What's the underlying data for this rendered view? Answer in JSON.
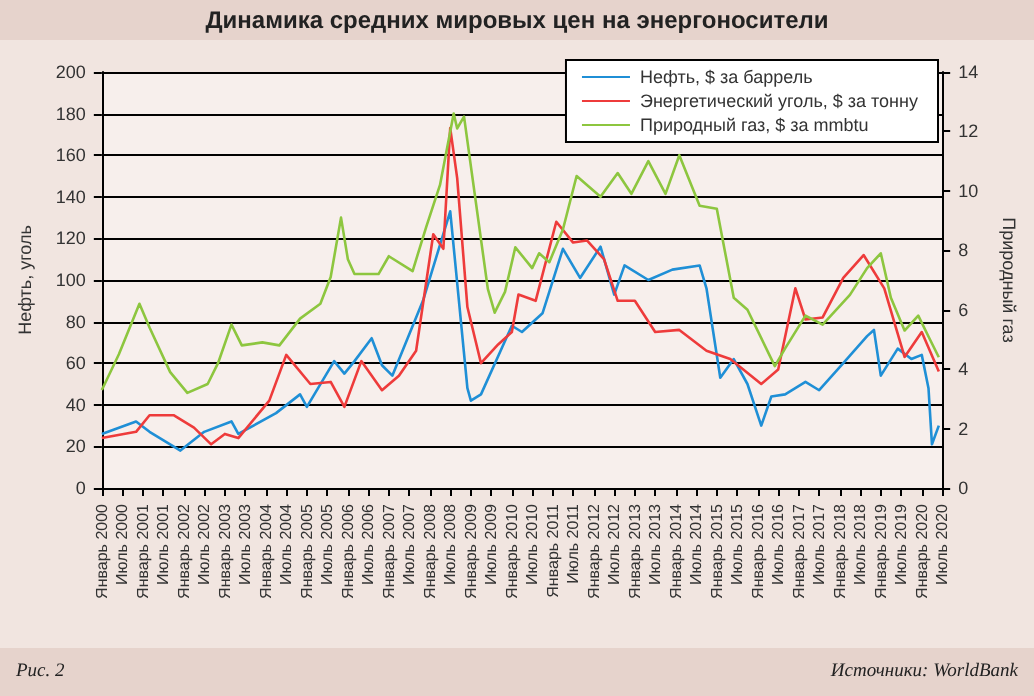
{
  "chart_data": {
    "type": "line",
    "title": "Динамика средних мировых цен на энергоносители",
    "ylabel": "Нефть, уголь",
    "y2label": "Природный газ",
    "annotations": [
      "Рис. 2",
      "Источники: WorldBank"
    ],
    "xlim": [
      "2000-01",
      "2020-07"
    ],
    "xticks": [
      {
        "value": "2000-01",
        "label": "Январь 2000"
      },
      {
        "value": "2000-07",
        "label": "Июль 2000"
      },
      {
        "value": "2001-01",
        "label": "Январь 2001"
      },
      {
        "value": "2001-07",
        "label": "Июль 2001"
      },
      {
        "value": "2002-01",
        "label": "Январь 2002"
      },
      {
        "value": "2002-07",
        "label": "Июль 2002"
      },
      {
        "value": "2003-01",
        "label": "Январь 2003"
      },
      {
        "value": "2003-07",
        "label": "Июль 2003"
      },
      {
        "value": "2004-01",
        "label": "Январь 2004"
      },
      {
        "value": "2004-07",
        "label": "Июль 2004"
      },
      {
        "value": "2005-01",
        "label": "Январь 2005"
      },
      {
        "value": "2005-07",
        "label": "Июль 2005"
      },
      {
        "value": "2006-01",
        "label": "Январь 2006"
      },
      {
        "value": "2006-07",
        "label": "Июль 2006"
      },
      {
        "value": "2007-01",
        "label": "Январь 2007"
      },
      {
        "value": "2007-07",
        "label": "Июль 2007"
      },
      {
        "value": "2008-01",
        "label": "Январь 2008"
      },
      {
        "value": "2008-07",
        "label": "Июль 2008"
      },
      {
        "value": "2009-01",
        "label": "Январь 2009"
      },
      {
        "value": "2009-07",
        "label": "Июль 2009"
      },
      {
        "value": "2010-01",
        "label": "Январь 2010"
      },
      {
        "value": "2010-07",
        "label": "Июль 2010"
      },
      {
        "value": "2011-01",
        "label": "Январь 2011"
      },
      {
        "value": "2011-07",
        "label": "Июль 2011"
      },
      {
        "value": "2012-01",
        "label": "Январь 2012"
      },
      {
        "value": "2012-07",
        "label": "Июль 2012"
      },
      {
        "value": "2013-01",
        "label": "Январь 2013"
      },
      {
        "value": "2013-07",
        "label": "Июль 2013"
      },
      {
        "value": "2014-01",
        "label": "Январь 2014"
      },
      {
        "value": "2014-07",
        "label": "Июль 2014"
      },
      {
        "value": "2015-01",
        "label": "Январь 2015"
      },
      {
        "value": "2015-07",
        "label": "Июль 2015"
      },
      {
        "value": "2016-01",
        "label": "Январь 2016"
      },
      {
        "value": "2016-07",
        "label": "Июль 2016"
      },
      {
        "value": "2017-01",
        "label": "Январь 2017"
      },
      {
        "value": "2017-07",
        "label": "Июль 2017"
      },
      {
        "value": "2018-01",
        "label": "Январь 2018"
      },
      {
        "value": "2018-07",
        "label": "Июль 2018"
      },
      {
        "value": "2019-01",
        "label": "Январь 2019"
      },
      {
        "value": "2019-07",
        "label": "Июль 2019"
      },
      {
        "value": "2020-01",
        "label": "Январь 2020"
      },
      {
        "value": "2020-07",
        "label": "Июль 2020"
      }
    ],
    "ylim": [
      0,
      200
    ],
    "yticks": [
      0,
      20,
      40,
      60,
      80,
      100,
      120,
      140,
      160,
      180,
      200
    ],
    "y2lim": [
      0,
      14
    ],
    "y2ticks": [
      0,
      2,
      4,
      6,
      8,
      10,
      12,
      14
    ],
    "grid": "y",
    "legend": "top right",
    "marker": "none",
    "line_style": "solid",
    "series": [
      {
        "name": "Нефть, $ за баррель",
        "color": "#1f8fd6",
        "x": [
          "2000-01",
          "2000-11",
          "2001-03",
          "2001-12",
          "2002-07",
          "2003-03",
          "2003-05",
          "2004-04",
          "2004-11",
          "2005-01",
          "2005-09",
          "2005-12",
          "2006-03",
          "2006-08",
          "2006-11",
          "2007-02",
          "2007-11",
          "2008-07",
          "2008-12",
          "2009-01",
          "2009-04",
          "2010-01",
          "2010-04",
          "2010-10",
          "2011-04",
          "2011-09",
          "2012-03",
          "2012-07",
          "2012-10",
          "2013-05",
          "2013-12",
          "2014-08",
          "2014-10",
          "2015-02",
          "2015-06",
          "2015-10",
          "2016-02",
          "2016-05",
          "2016-09",
          "2017-03",
          "2017-07",
          "2018-02",
          "2018-09",
          "2018-11",
          "2019-01",
          "2019-06",
          "2019-10",
          "2020-01",
          "2020-03",
          "2020-04",
          "2020-06"
        ],
        "values": [
          26,
          32,
          27,
          18,
          27,
          32,
          26,
          36,
          45,
          39,
          61,
          55,
          61,
          72,
          59,
          54,
          90,
          133,
          48,
          42,
          45,
          78,
          75,
          84,
          115,
          101,
          116,
          93,
          107,
          100,
          105,
          107,
          96,
          53,
          62,
          50,
          30,
          44,
          45,
          51,
          47,
          60,
          73,
          76,
          54,
          67,
          62,
          64,
          48,
          21,
          30
        ]
      },
      {
        "name": "Энергетический уголь, $ за тонну",
        "color": "#ee3b3b",
        "x": [
          "2000-01",
          "2000-11",
          "2001-03",
          "2001-10",
          "2002-04",
          "2002-09",
          "2003-01",
          "2003-05",
          "2004-02",
          "2004-07",
          "2005-02",
          "2005-08",
          "2005-12",
          "2006-05",
          "2006-11",
          "2007-04",
          "2007-09",
          "2008-02",
          "2008-05",
          "2008-07",
          "2008-09",
          "2008-12",
          "2009-04",
          "2009-09",
          "2010-01",
          "2010-03",
          "2010-08",
          "2011-02",
          "2011-07",
          "2011-11",
          "2012-04",
          "2012-08",
          "2013-01",
          "2013-07",
          "2014-02",
          "2014-10",
          "2015-05",
          "2016-02",
          "2016-07",
          "2016-12",
          "2017-03",
          "2017-08",
          "2018-02",
          "2018-08",
          "2019-02",
          "2019-08",
          "2020-01",
          "2020-06"
        ],
        "values": [
          24,
          27,
          35,
          35,
          29,
          21,
          26,
          24,
          42,
          64,
          50,
          51,
          39,
          61,
          47,
          54,
          66,
          122,
          115,
          173,
          149,
          87,
          60,
          69,
          75,
          93,
          90,
          128,
          118,
          119,
          110,
          90,
          90,
          75,
          76,
          66,
          62,
          50,
          57,
          96,
          81,
          82,
          101,
          112,
          96,
          63,
          75,
          56
        ]
      },
      {
        "name": "Природный газ, $ за mmbtu",
        "color": "#8dc63f",
        "axis": "y2",
        "x": [
          "2000-01",
          "2000-06",
          "2000-12",
          "2001-03",
          "2001-09",
          "2002-02",
          "2002-08",
          "2002-11",
          "2003-03",
          "2003-06",
          "2003-12",
          "2004-05",
          "2004-11",
          "2005-05",
          "2005-08",
          "2005-11",
          "2006-01",
          "2006-03",
          "2006-10",
          "2007-01",
          "2007-08",
          "2007-12",
          "2008-04",
          "2008-08",
          "2008-09",
          "2008-11",
          "2009-06",
          "2009-08",
          "2009-11",
          "2010-02",
          "2010-07",
          "2010-09",
          "2010-12",
          "2011-04",
          "2011-08",
          "2012-03",
          "2012-08",
          "2012-12",
          "2013-05",
          "2013-10",
          "2014-02",
          "2014-08",
          "2015-01",
          "2015-06",
          "2015-10",
          "2016-06",
          "2016-09",
          "2017-03",
          "2017-08",
          "2018-04",
          "2018-09",
          "2019-01",
          "2019-04",
          "2019-08",
          "2019-12",
          "2020-03",
          "2020-06"
        ],
        "values": [
          3.3,
          4.5,
          6.2,
          5.4,
          3.9,
          3.2,
          3.5,
          4.2,
          5.5,
          4.8,
          4.9,
          4.8,
          5.7,
          6.2,
          7.1,
          9.1,
          7.7,
          7.2,
          7.2,
          7.8,
          7.3,
          8.8,
          10.2,
          12.6,
          12.1,
          12.5,
          6.7,
          5.9,
          6.6,
          8.1,
          7.4,
          7.9,
          7.6,
          8.7,
          10.5,
          9.8,
          10.6,
          9.9,
          11.0,
          9.9,
          11.2,
          9.5,
          9.4,
          6.4,
          6.0,
          4.1,
          4.7,
          5.8,
          5.5,
          6.5,
          7.4,
          7.9,
          6.4,
          5.3,
          5.8,
          5.1,
          4.4
        ]
      }
    ]
  }
}
